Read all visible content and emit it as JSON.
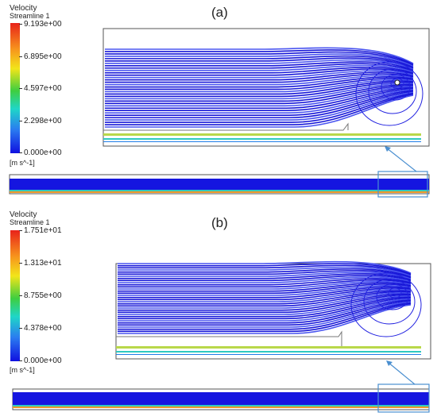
{
  "panels": [
    {
      "label": "(a)",
      "legend": {
        "title": "Velocity",
        "subtitle": "Streamline 1",
        "ticks": [
          "9.193e+00",
          "6.895e+00",
          "4.597e+00",
          "2.298e+00",
          "0.000e+00"
        ],
        "units": "[m s^-1]"
      }
    },
    {
      "label": "(b)",
      "legend": {
        "title": "Velocity",
        "subtitle": "Streamline 1",
        "ticks": [
          "1.751e+01",
          "1.313e+01",
          "8.755e+00",
          "4.378e+00",
          "0.000e+00"
        ],
        "units": "[m s^-1]"
      }
    }
  ],
  "colors": {
    "streamline": "#1818d8",
    "streamline_light": "#4a55f0",
    "highlight_box": "#4a8fd0",
    "wall": "#555555"
  }
}
